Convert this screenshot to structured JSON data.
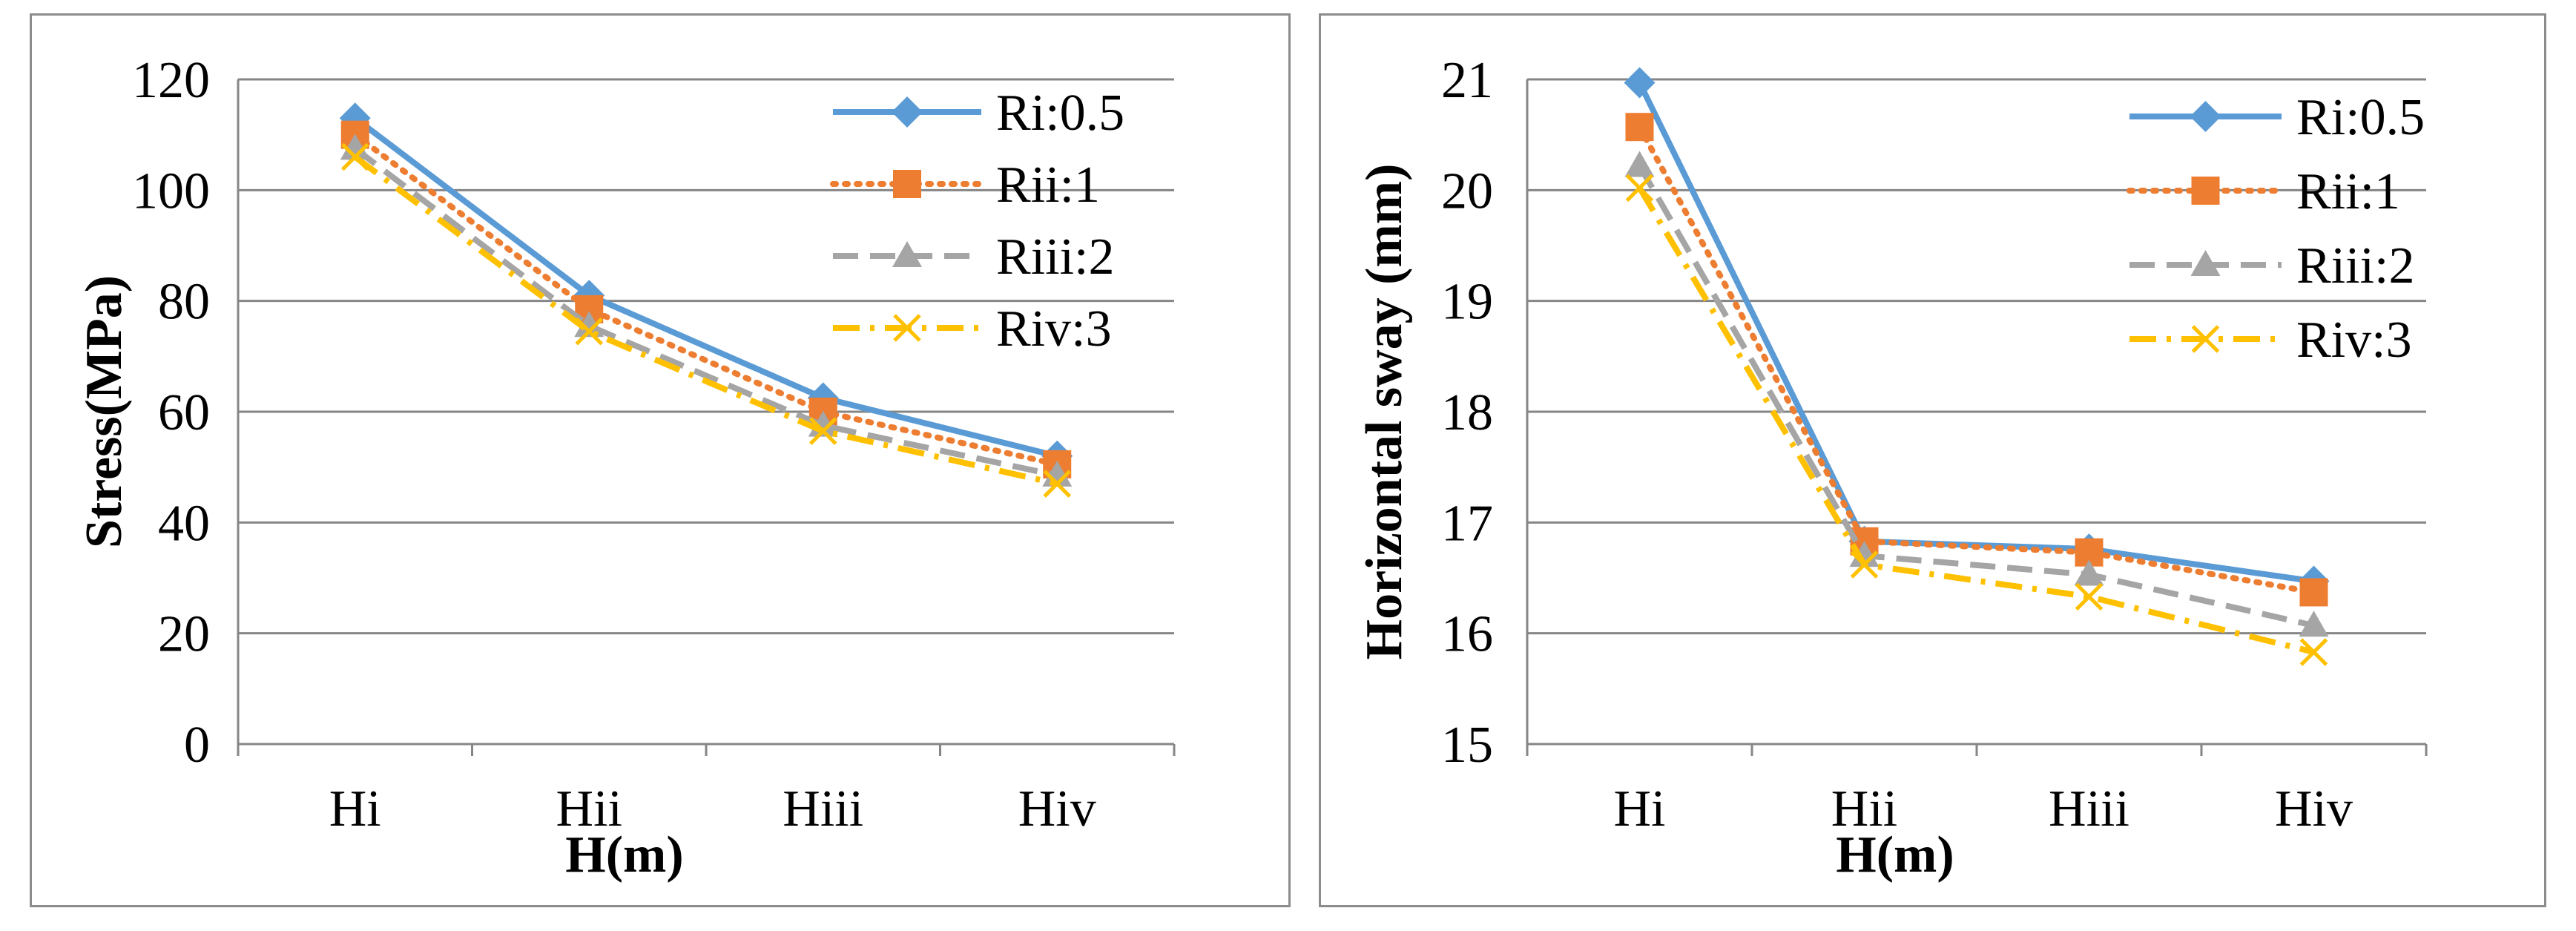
{
  "chart_data": [
    {
      "id": "stress",
      "type": "line",
      "categories": [
        "Hi",
        "Hii",
        "Hiii",
        "Hiv"
      ],
      "xlabel": "H(m)",
      "ylabel": "Stress(MPa)",
      "ylim": [
        0,
        120
      ],
      "yticks": [
        0,
        20,
        40,
        60,
        80,
        100,
        120
      ],
      "grid": true,
      "legend_position": "top-right",
      "series": [
        {
          "name": "Ri:0.5",
          "values": [
            113,
            81,
            62.5,
            52
          ],
          "color": "#5b9bd5",
          "marker": "diamond",
          "dash": "solid"
        },
        {
          "name": "Rii:1",
          "values": [
            110,
            78.5,
            60,
            50.5
          ],
          "color": "#ed7d31",
          "marker": "square",
          "dash": "dotted"
        },
        {
          "name": "Riii:2",
          "values": [
            107.5,
            75.5,
            57.5,
            48.5
          ],
          "color": "#a5a5a5",
          "marker": "triangle",
          "dash": "dashed"
        },
        {
          "name": "Riv:3",
          "values": [
            106,
            74.5,
            56.5,
            47
          ],
          "color": "#ffc000",
          "marker": "x",
          "dash": "dashdot"
        }
      ]
    },
    {
      "id": "sway",
      "type": "line",
      "categories": [
        "Hi",
        "Hii",
        "Hiii",
        "Hiv"
      ],
      "xlabel": "H(m)",
      "ylabel": "Horizontal sway (mm)",
      "ylim": [
        15,
        21
      ],
      "yticks": [
        15,
        16,
        17,
        18,
        19,
        20,
        21
      ],
      "grid": true,
      "legend_position": "top-right",
      "series": [
        {
          "name": "Ri:0.5",
          "values": [
            20.97,
            16.83,
            16.76,
            16.47
          ],
          "color": "#5b9bd5",
          "marker": "diamond",
          "dash": "solid"
        },
        {
          "name": "Rii:1",
          "values": [
            20.57,
            16.83,
            16.73,
            16.37
          ],
          "color": "#ed7d31",
          "marker": "square",
          "dash": "dotted"
        },
        {
          "name": "Riii:2",
          "values": [
            20.22,
            16.7,
            16.53,
            16.07
          ],
          "color": "#a5a5a5",
          "marker": "triangle",
          "dash": "dashed"
        },
        {
          "name": "Riv:3",
          "values": [
            20.02,
            16.62,
            16.33,
            15.83
          ],
          "color": "#ffc000",
          "marker": "x",
          "dash": "dashdot"
        }
      ]
    }
  ]
}
